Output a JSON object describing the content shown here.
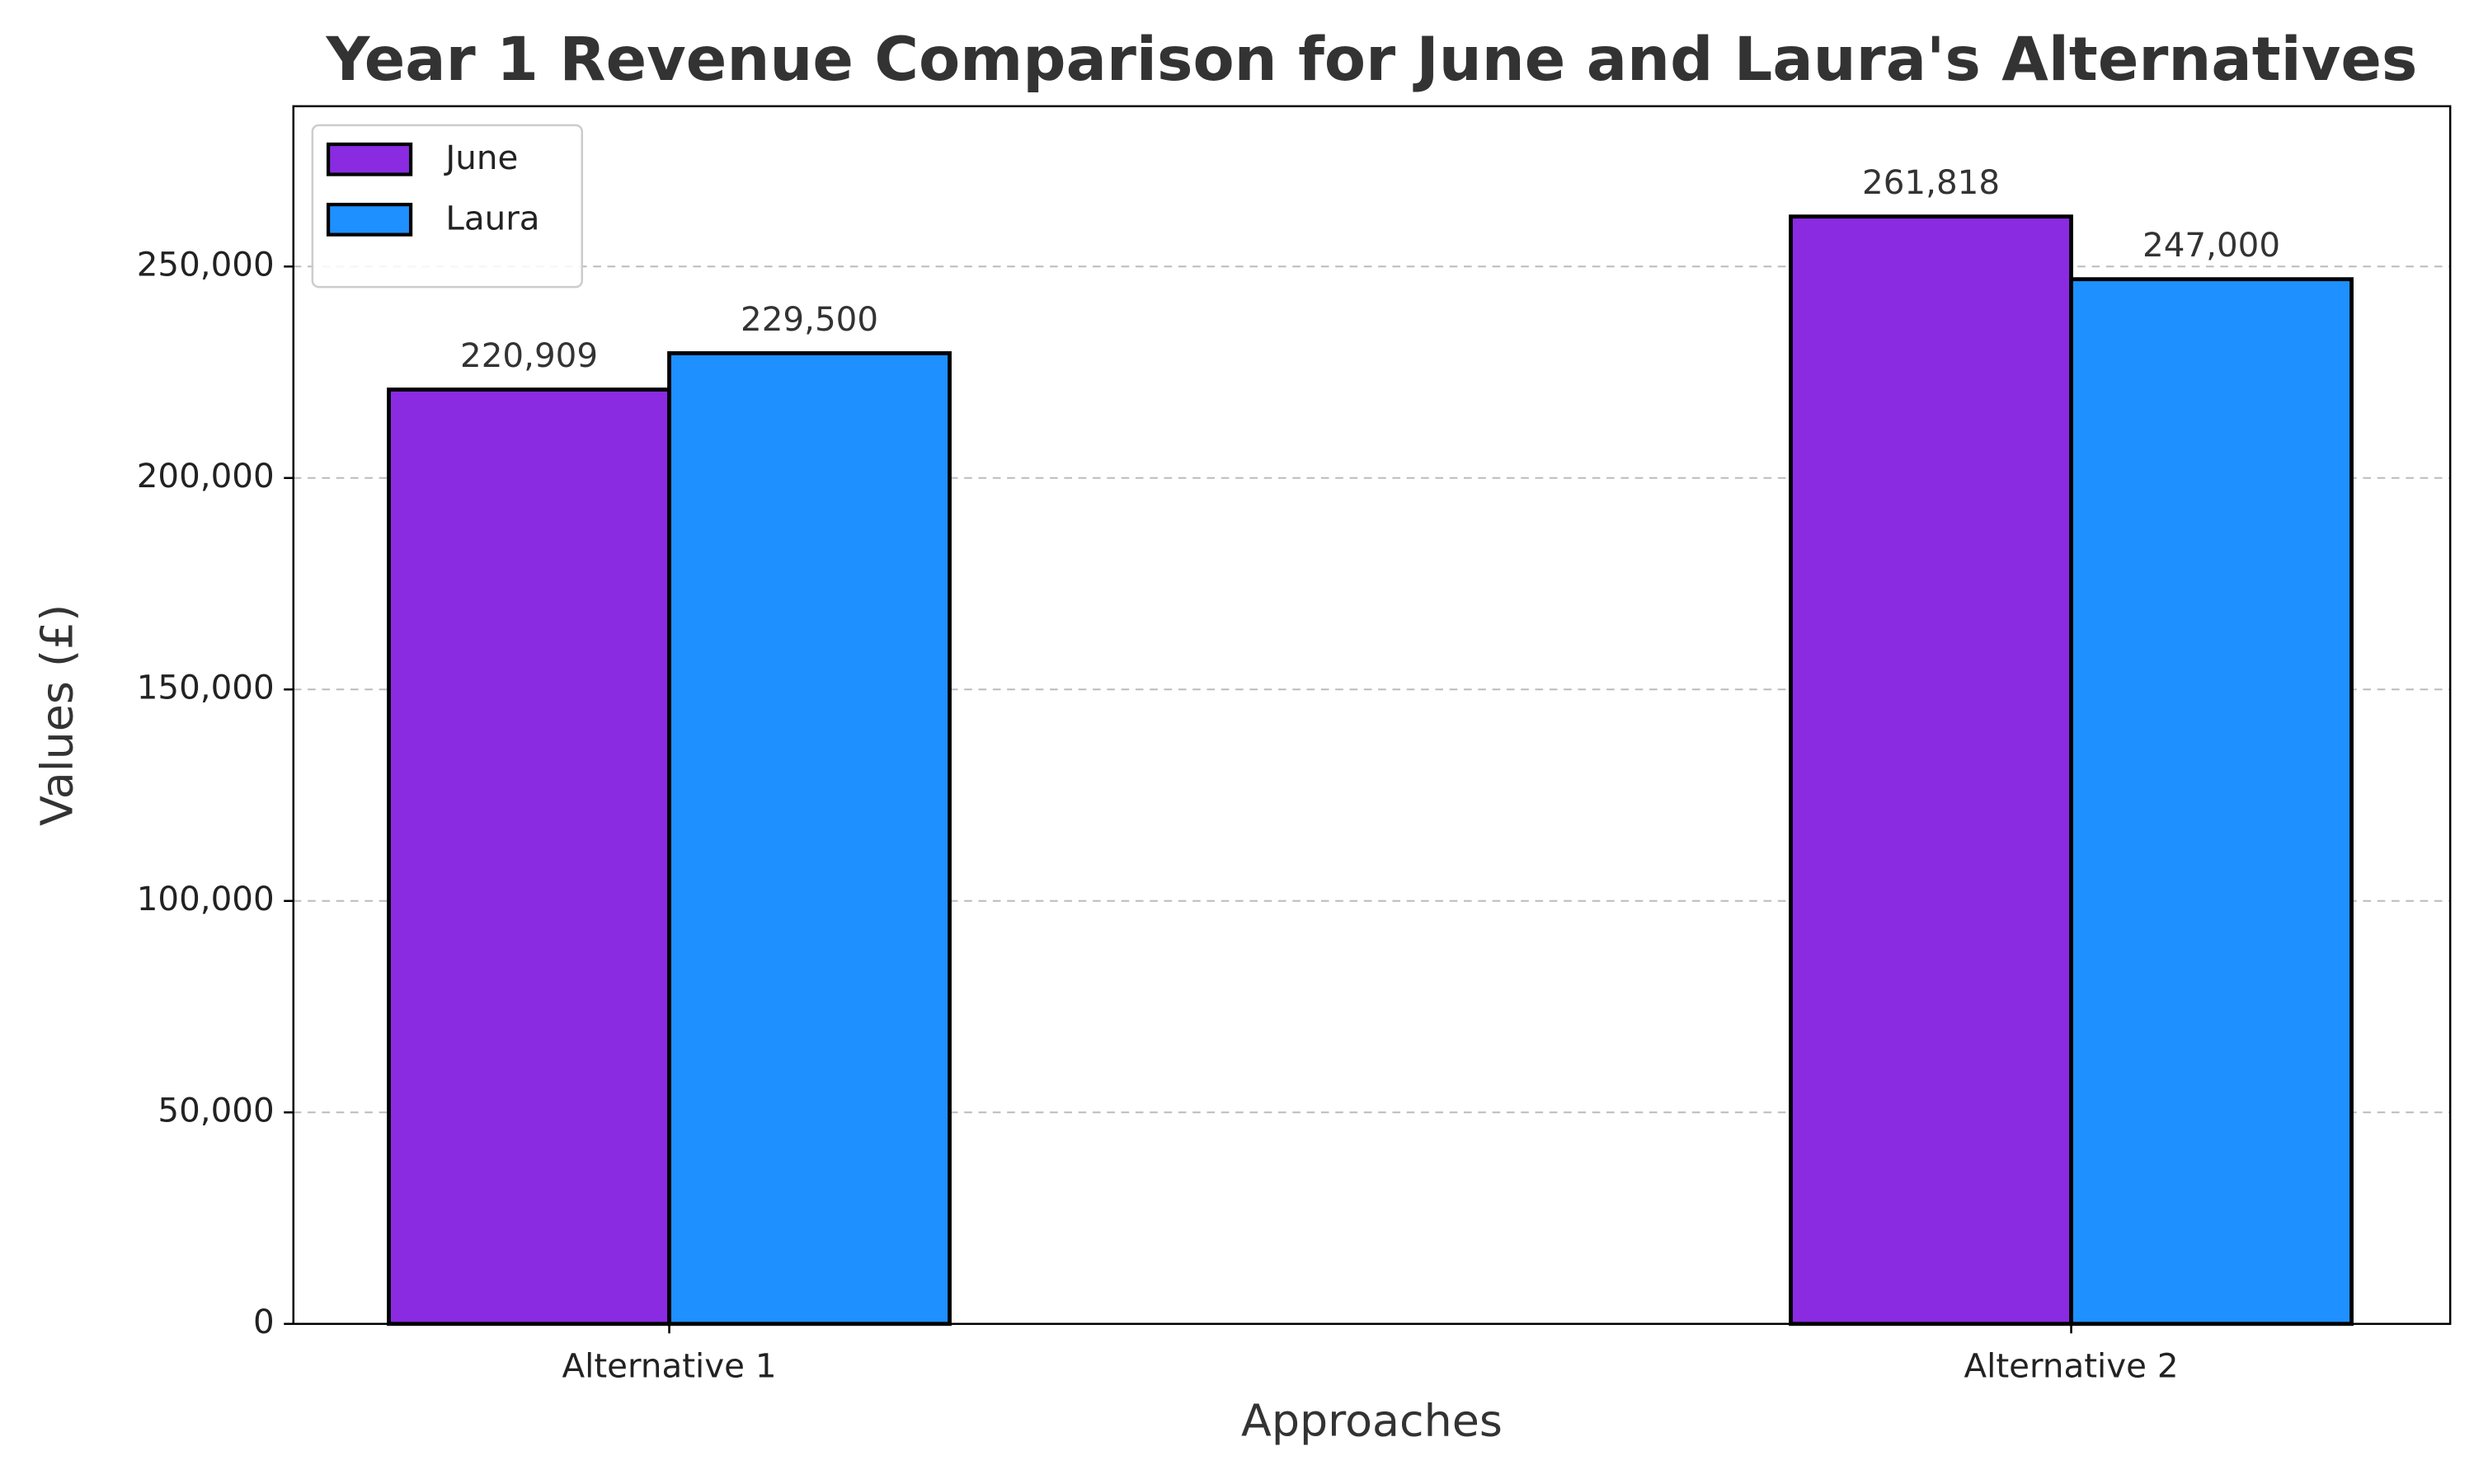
{
  "chart_data": {
    "type": "bar",
    "title": "Year 1 Revenue Comparison for June and Laura's Alternatives",
    "xlabel": "Approaches",
    "ylabel": "Values (£)",
    "categories": [
      "Alternative 1",
      "Alternative 2"
    ],
    "series": [
      {
        "name": "June",
        "color": "#8a2be2",
        "values": [
          220909,
          261818
        ],
        "value_labels": [
          "220,909",
          "261,818"
        ]
      },
      {
        "name": "Laura",
        "color": "#1e90ff",
        "values": [
          229500,
          247000
        ],
        "value_labels": [
          "229,500",
          "247,000"
        ]
      }
    ],
    "ylim": [
      0,
      287900
    ],
    "yticks": [
      0,
      {
        "value": 50000,
        "label": "50,000"
      },
      {
        "value": 100000,
        "label": "100,000"
      },
      {
        "value": 150000,
        "label": "150,000"
      },
      {
        "value": 200000,
        "label": "200,000"
      },
      {
        "value": 250000,
        "label": "250,000"
      }
    ],
    "grid": true,
    "legend": "upper left"
  }
}
